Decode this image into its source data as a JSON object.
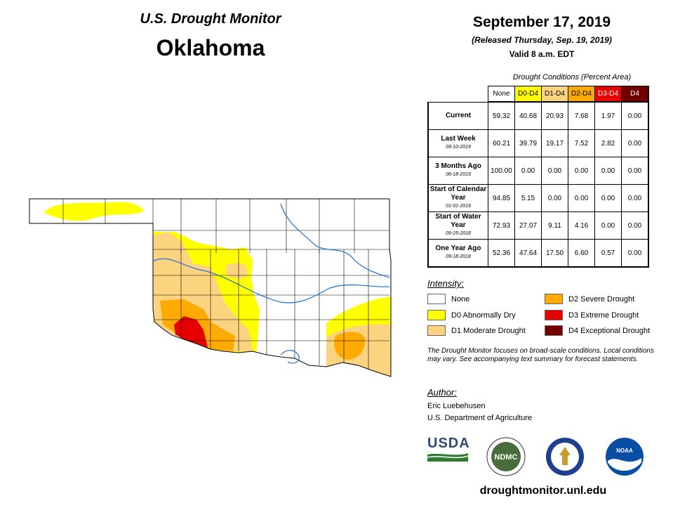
{
  "header": {
    "title": "U.S. Drought Monitor",
    "state": "Oklahoma",
    "date": "September 17, 2019",
    "released": "(Released Thursday, Sep. 19, 2019)",
    "valid": "Valid 8 a.m. EDT"
  },
  "table": {
    "caption": "Drought Conditions (Percent Area)",
    "columns": [
      {
        "label": "None",
        "color": "#ffffff",
        "text_color": "#000000"
      },
      {
        "label": "D0-D4",
        "color": "#ffff00",
        "text_color": "#000000"
      },
      {
        "label": "D1-D4",
        "color": "#fcd37f",
        "text_color": "#000000"
      },
      {
        "label": "D2-D4",
        "color": "#ffaa00",
        "text_color": "#000000"
      },
      {
        "label": "D3-D4",
        "color": "#e60000",
        "text_color": "#ffffff"
      },
      {
        "label": "D4",
        "color": "#730000",
        "text_color": "#ffffff"
      }
    ],
    "rows": [
      {
        "label": "Current",
        "sub": "",
        "values": [
          "59.32",
          "40.68",
          "20.93",
          "7.68",
          "1.97",
          "0.00"
        ]
      },
      {
        "label": "Last Week",
        "sub": "09-10-2019",
        "values": [
          "60.21",
          "39.79",
          "19.17",
          "7.52",
          "2.82",
          "0.00"
        ]
      },
      {
        "label": "3 Months Ago",
        "sub": "06-18-2019",
        "values": [
          "100.00",
          "0.00",
          "0.00",
          "0.00",
          "0.00",
          "0.00"
        ]
      },
      {
        "label": "Start of Calendar Year",
        "sub": "01-01-2019",
        "values": [
          "94.85",
          "5.15",
          "0.00",
          "0.00",
          "0.00",
          "0.00"
        ]
      },
      {
        "label": "Start of Water Year",
        "sub": "09-25-2018",
        "values": [
          "72.93",
          "27.07",
          "9.11",
          "4.16",
          "0.00",
          "0.00"
        ]
      },
      {
        "label": "One Year Ago",
        "sub": "09-18-2018",
        "values": [
          "52.36",
          "47.64",
          "17.50",
          "6.60",
          "0.57",
          "0.00"
        ]
      }
    ]
  },
  "intensity": {
    "heading": "Intensity:",
    "items": [
      {
        "label": "None",
        "color": "#ffffff"
      },
      {
        "label": "D0 Abnormally Dry",
        "color": "#ffff00"
      },
      {
        "label": "D1 Moderate Drought",
        "color": "#fcd37f"
      },
      {
        "label": "D2 Severe Drought",
        "color": "#ffaa00"
      },
      {
        "label": "D3 Extreme Drought",
        "color": "#e60000"
      },
      {
        "label": "D4 Exceptional Drought",
        "color": "#730000"
      }
    ]
  },
  "note": "The Drought Monitor focuses on broad-scale conditions. Local conditions may vary. See accompanying text summary for forecast statements.",
  "author": {
    "heading": "Author:",
    "name": "Eric Luebehusen",
    "org": "U.S. Department of Agriculture"
  },
  "logos": {
    "usda": "USDA",
    "ndmc": "NDMC",
    "doc_icon": "commerce-seal-icon",
    "noaa": "NOAA"
  },
  "url": "droughtmonitor.unl.edu"
}
